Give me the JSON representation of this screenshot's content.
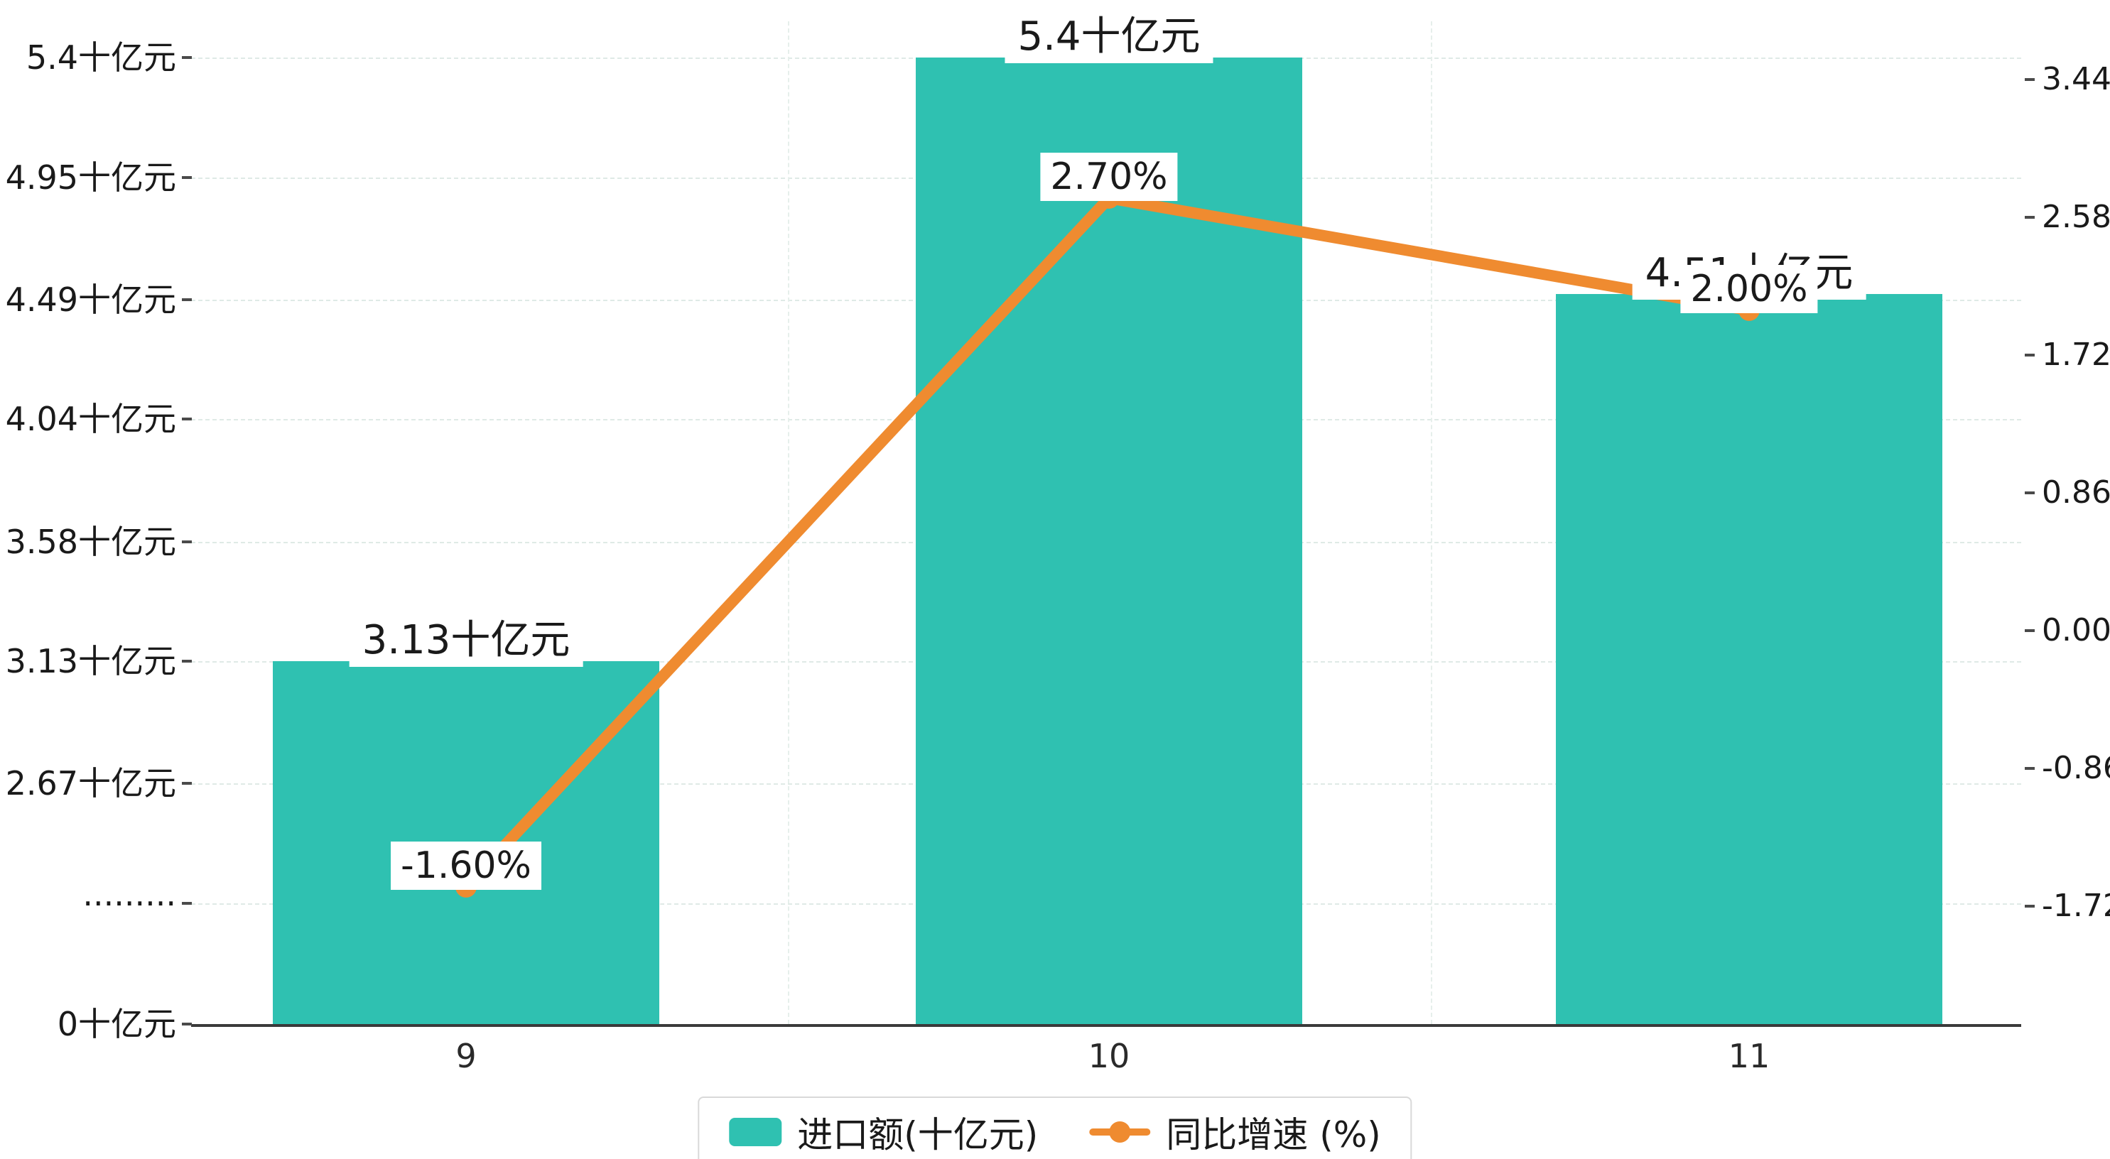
{
  "chart_data": {
    "type": "combo_bar_line",
    "categories": [
      "9",
      "10",
      "11"
    ],
    "series": [
      {
        "name": "进口额(十亿元)",
        "type": "bar",
        "unit": "十亿元",
        "values": [
          3.13,
          5.4,
          4.51
        ],
        "labels": [
          "3.13十亿元",
          "5.4十亿元",
          "4.51十亿元"
        ],
        "axis": "left"
      },
      {
        "name": "同比增速 (%)",
        "type": "line",
        "unit": "%",
        "values": [
          -1.6,
          2.7,
          2.0
        ],
        "labels": [
          "-1.60%",
          "2.70%",
          "2.00%"
        ],
        "axis": "right"
      }
    ],
    "left_axis": {
      "ticks": [
        {
          "label": "5.4十亿元",
          "value": 5.4
        },
        {
          "label": "4.95十亿元",
          "value": 4.95
        },
        {
          "label": "4.49十亿元",
          "value": 4.49
        },
        {
          "label": "4.04十亿元",
          "value": 4.04
        },
        {
          "label": "3.58十亿元",
          "value": 3.58
        },
        {
          "label": "3.13十亿元",
          "value": 3.13
        },
        {
          "label": "2.67十亿元",
          "value": 2.67
        },
        {
          "label": "·········",
          "value": 2.22
        },
        {
          "label": "0十亿元",
          "value": 0
        }
      ]
    },
    "right_axis": {
      "ticks": [
        {
          "label": "3.44",
          "value": 3.44
        },
        {
          "label": "2.58",
          "value": 2.58
        },
        {
          "label": "1.72",
          "value": 1.72
        },
        {
          "label": "0.86",
          "value": 0.86
        },
        {
          "label": "0.00",
          "value": 0
        },
        {
          "label": "-0.86",
          "value": -0.86
        },
        {
          "label": "-1.72",
          "value": -1.72
        }
      ]
    },
    "legend": [
      {
        "label": "进口额(十亿元)",
        "marker": "bar-swatch"
      },
      {
        "label": "同比增速 (%)",
        "marker": "line-dot"
      }
    ],
    "legend_position": "bottom",
    "grid": "dashed",
    "colors": {
      "bar": "#2FC1B1",
      "line": "#EF8B30",
      "grid": "#dfeae6",
      "axis": "#3a3a3a",
      "text": "#1a1a1a",
      "label_bg": "#ffffff"
    }
  }
}
